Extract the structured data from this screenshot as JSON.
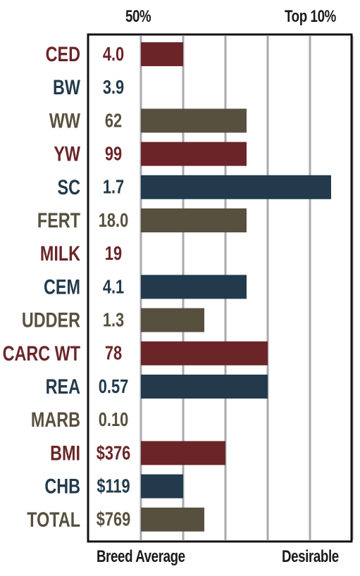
{
  "header": {
    "left_label": "50%",
    "right_label": "Top 10%"
  },
  "footer": {
    "left_label": "Breed Average",
    "right_label": "Desirable"
  },
  "colors": {
    "red": "#6b2529",
    "blue": "#223a4b",
    "gray": "#58503f",
    "grid": "#a9a9b0",
    "border": "#111111"
  },
  "chart_data": {
    "type": "bar",
    "orientation": "horizontal",
    "xlim": [
      0,
      5
    ],
    "grid": true,
    "categories": [
      "CED",
      "BW",
      "WW",
      "YW",
      "SC",
      "FERT",
      "MILK",
      "CEM",
      "UDDER",
      "CARC WT",
      "REA",
      "MARB",
      "BMI",
      "CHB",
      "TOTAL"
    ],
    "value_labels": [
      "4.0",
      "3.9",
      "62",
      "99",
      "1.7",
      "18.0",
      "19",
      "4.1",
      "1.3",
      "78",
      "0.57",
      "0.10",
      "$376",
      "$119",
      "$769"
    ],
    "bar_values": [
      1.0,
      0,
      2.5,
      2.5,
      4.5,
      2.5,
      0,
      2.5,
      1.5,
      3.0,
      3.0,
      0,
      2.0,
      1.0,
      1.5
    ],
    "row_colors": [
      "red",
      "blue",
      "gray",
      "red",
      "blue",
      "gray",
      "red",
      "blue",
      "gray",
      "red",
      "blue",
      "gray",
      "red",
      "blue",
      "gray"
    ]
  }
}
